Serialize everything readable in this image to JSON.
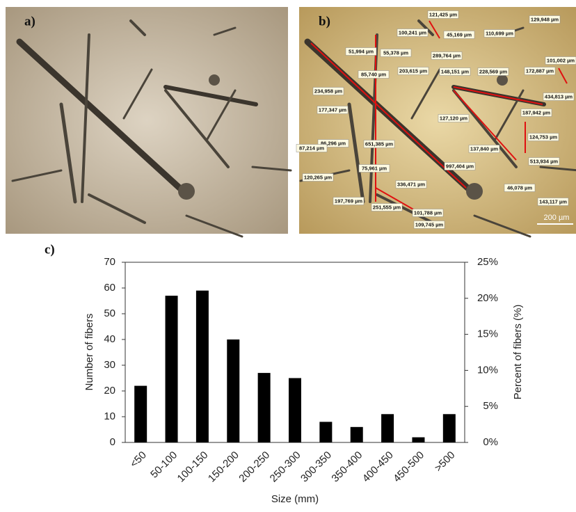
{
  "images": [
    {
      "label": "a)"
    },
    {
      "label": "b)",
      "scale_bar": "200 µm",
      "annotations": [
        "121,425 µm",
        "100,241 µm",
        "45,169 µm",
        "110,699 µm",
        "129,948 µm",
        "51,994 µm",
        "55,378 µm",
        "289,764 µm",
        "101,002 µm",
        "85,740 µm",
        "203,615 µm",
        "148,151 µm",
        "228,569 µm",
        "172,887 µm",
        "434,813 µm",
        "234,958 µm",
        "177,347 µm",
        "127,120 µm",
        "187,942 µm",
        "86,296 µm",
        "651,385 µm",
        "124,753 µm",
        "87,214 µm",
        "137,840 µm",
        "513,934 µm",
        "75,961 µm",
        "997,404 µm",
        "120,265 µm",
        "336,471 µm",
        "46,078 µm",
        "143,117 µm",
        "197,769 µm",
        "251,555 µm",
        "101,788 µm",
        "109,745 µm"
      ]
    }
  ],
  "chart_data": {
    "type": "bar",
    "panel_label": "c)",
    "x_label": "Size (mm)",
    "y_label": "Number of fibers",
    "y2_label": "Percent of fibers (%)",
    "categories": [
      "<50",
      "50-100",
      "100-150",
      "150-200",
      "200-250",
      "250-300",
      "300-350",
      "350-400",
      "400-450",
      "450-500",
      ">500"
    ],
    "values": [
      22,
      57,
      59,
      40,
      27,
      25,
      8,
      6,
      11,
      2,
      11
    ],
    "color": "#000000",
    "ylim": [
      0,
      70
    ],
    "yticks": [
      0,
      10,
      20,
      30,
      40,
      50,
      60,
      70
    ],
    "y2lim": [
      0,
      25
    ],
    "y2ticks": [
      {
        "value": 0,
        "label": "0%"
      },
      {
        "value": 5,
        "label": "5%"
      },
      {
        "value": 10,
        "label": "10%"
      },
      {
        "value": 15,
        "label": "15%"
      },
      {
        "value": 20,
        "label": "20%"
      },
      {
        "value": 25,
        "label": "25%"
      }
    ],
    "grid": false
  }
}
